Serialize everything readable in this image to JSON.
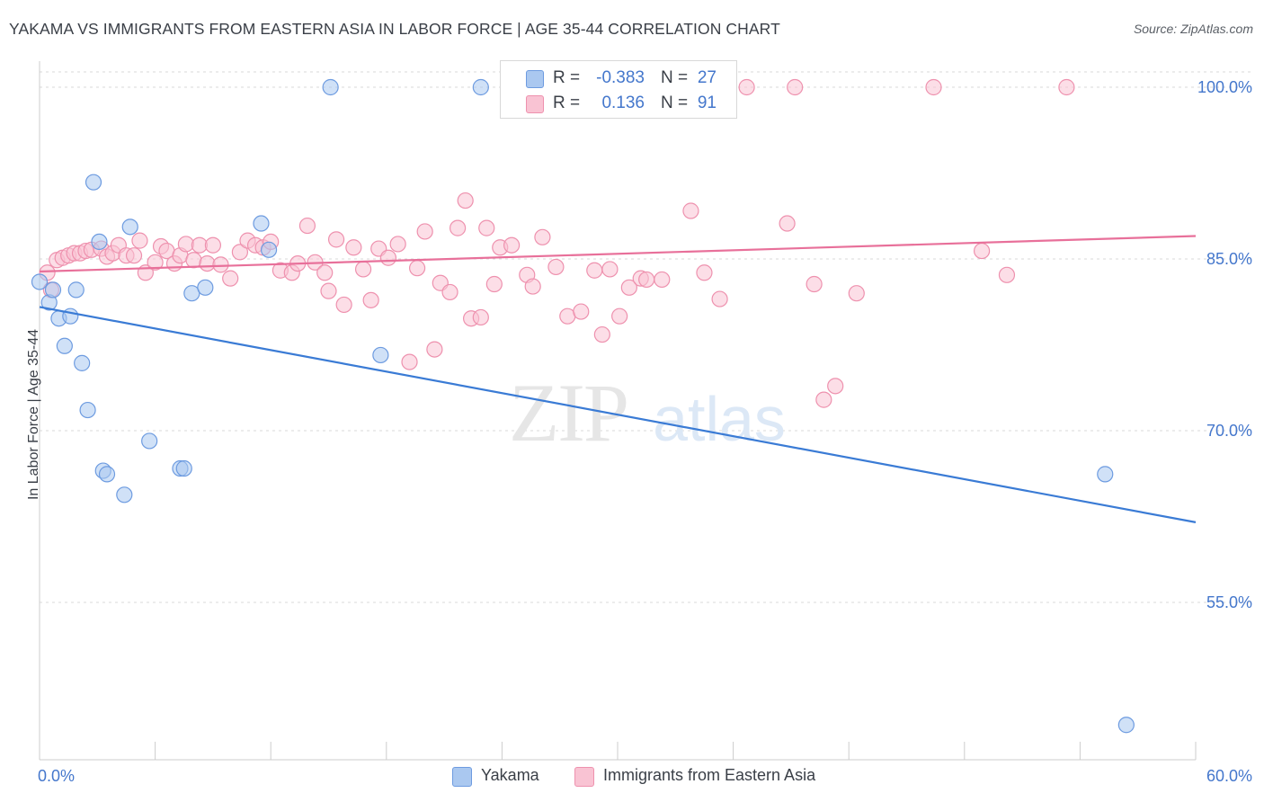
{
  "title": "YAKAMA VS IMMIGRANTS FROM EASTERN ASIA IN LABOR FORCE | AGE 35-44 CORRELATION CHART",
  "source": "Source: ZipAtlas.com",
  "legend_stats": [
    {
      "r_label": "R =",
      "r_value": "-0.383",
      "n_label": "N =",
      "n_value": "27",
      "color": "#aac8f0",
      "stroke": "#6d9be0"
    },
    {
      "r_label": "R =",
      "r_value": "0.136",
      "n_label": "N =",
      "n_value": "91",
      "color": "#f9c3d3",
      "stroke": "#ee91ae"
    }
  ],
  "colors": {
    "yakama_line": "#3a7bd5",
    "asia_line": "#e8709a",
    "tick_label": "#4477cc",
    "grid": "#d9d9d9"
  },
  "watermark": {
    "zip": "ZIP",
    "atlas": "atlas"
  },
  "chart_data": {
    "type": "scatter",
    "title": "YAKAMA VS IMMIGRANTS FROM EASTERN ASIA IN LABOR FORCE | AGE 35-44 CORRELATION CHART",
    "xlabel": "",
    "ylabel": "In Labor Force | Age 35-44",
    "xlim": [
      0,
      60
    ],
    "ylim": [
      40.5,
      101.5
    ],
    "x_tick_labels": [
      "0.0%",
      "60.0%"
    ],
    "y_ticks": [
      55,
      70,
      85,
      100
    ],
    "y_tick_labels": [
      "55.0%",
      "70.0%",
      "85.0%",
      "100.0%"
    ],
    "grid": true,
    "legend": "bottom-center",
    "series": [
      {
        "name": "Yakama",
        "color": "#aac8f0",
        "stroke": "#6d9be0",
        "points": [
          [
            0.0,
            83.0
          ],
          [
            0.5,
            81.2
          ],
          [
            0.7,
            82.3
          ],
          [
            1.0,
            79.8
          ],
          [
            1.3,
            77.4
          ],
          [
            1.6,
            80.0
          ],
          [
            1.9,
            82.3
          ],
          [
            2.2,
            75.9
          ],
          [
            2.5,
            71.8
          ],
          [
            2.8,
            91.7
          ],
          [
            3.1,
            86.5
          ],
          [
            3.3,
            66.5
          ],
          [
            3.5,
            66.2
          ],
          [
            4.4,
            64.4
          ],
          [
            4.7,
            87.8
          ],
          [
            5.7,
            69.1
          ],
          [
            7.3,
            66.7
          ],
          [
            7.5,
            66.7
          ],
          [
            7.9,
            82.0
          ],
          [
            8.6,
            82.5
          ],
          [
            11.5,
            88.1
          ],
          [
            11.9,
            85.8
          ],
          [
            15.1,
            100.0
          ],
          [
            17.7,
            76.6
          ],
          [
            22.9,
            100.0
          ],
          [
            55.3,
            66.2
          ],
          [
            56.4,
            44.3
          ]
        ]
      },
      {
        "name": "Immigrants from Eastern Asia",
        "color": "#f9c3d3",
        "stroke": "#ee91ae",
        "points": [
          [
            0.4,
            83.8
          ],
          [
            0.6,
            82.3
          ],
          [
            0.9,
            84.9
          ],
          [
            1.2,
            85.1
          ],
          [
            1.5,
            85.3
          ],
          [
            1.8,
            85.5
          ],
          [
            2.1,
            85.5
          ],
          [
            2.4,
            85.7
          ],
          [
            2.7,
            85.8
          ],
          [
            3.2,
            85.9
          ],
          [
            3.5,
            85.2
          ],
          [
            3.8,
            85.5
          ],
          [
            4.1,
            86.2
          ],
          [
            4.5,
            85.3
          ],
          [
            4.9,
            85.3
          ],
          [
            5.2,
            86.6
          ],
          [
            5.5,
            83.8
          ],
          [
            6.0,
            84.7
          ],
          [
            6.3,
            86.1
          ],
          [
            6.6,
            85.7
          ],
          [
            7.0,
            84.6
          ],
          [
            7.3,
            85.3
          ],
          [
            7.6,
            86.3
          ],
          [
            8.0,
            84.9
          ],
          [
            8.3,
            86.2
          ],
          [
            8.7,
            84.6
          ],
          [
            9.0,
            86.2
          ],
          [
            9.4,
            84.5
          ],
          [
            9.9,
            83.3
          ],
          [
            10.4,
            85.6
          ],
          [
            10.8,
            86.6
          ],
          [
            11.2,
            86.2
          ],
          [
            11.6,
            86.0
          ],
          [
            12.0,
            86.5
          ],
          [
            12.5,
            84.0
          ],
          [
            13.1,
            83.8
          ],
          [
            13.4,
            84.6
          ],
          [
            13.9,
            87.9
          ],
          [
            14.3,
            84.7
          ],
          [
            14.8,
            83.8
          ],
          [
            15.0,
            82.2
          ],
          [
            15.4,
            86.7
          ],
          [
            15.8,
            81.0
          ],
          [
            16.3,
            86.0
          ],
          [
            16.8,
            84.1
          ],
          [
            17.2,
            81.4
          ],
          [
            17.6,
            85.9
          ],
          [
            18.1,
            85.1
          ],
          [
            18.6,
            86.3
          ],
          [
            19.2,
            76.0
          ],
          [
            19.6,
            84.2
          ],
          [
            20.0,
            87.4
          ],
          [
            20.5,
            77.1
          ],
          [
            20.8,
            82.9
          ],
          [
            21.3,
            82.1
          ],
          [
            21.7,
            87.7
          ],
          [
            22.1,
            90.1
          ],
          [
            22.4,
            79.8
          ],
          [
            22.9,
            79.9
          ],
          [
            23.2,
            87.7
          ],
          [
            23.6,
            82.8
          ],
          [
            23.9,
            86.0
          ],
          [
            24.5,
            86.2
          ],
          [
            25.3,
            83.6
          ],
          [
            25.6,
            82.6
          ],
          [
            26.1,
            86.9
          ],
          [
            26.8,
            84.3
          ],
          [
            27.4,
            80.0
          ],
          [
            28.1,
            80.4
          ],
          [
            28.8,
            84.0
          ],
          [
            29.2,
            78.4
          ],
          [
            29.6,
            84.1
          ],
          [
            30.1,
            80.0
          ],
          [
            30.6,
            82.5
          ],
          [
            31.2,
            83.3
          ],
          [
            31.5,
            83.2
          ],
          [
            32.3,
            83.2
          ],
          [
            33.8,
            89.2
          ],
          [
            34.5,
            83.8
          ],
          [
            35.3,
            81.5
          ],
          [
            36.7,
            100.0
          ],
          [
            39.2,
            100.0
          ],
          [
            38.8,
            88.1
          ],
          [
            40.2,
            82.8
          ],
          [
            40.7,
            72.7
          ],
          [
            41.3,
            73.9
          ],
          [
            42.4,
            82.0
          ],
          [
            46.4,
            100.0
          ],
          [
            48.9,
            85.7
          ],
          [
            50.2,
            83.6
          ],
          [
            53.3,
            100.0
          ]
        ]
      }
    ],
    "trend_lines": [
      {
        "name": "Yakama",
        "x": [
          0,
          60
        ],
        "y": [
          80.8,
          62.0
        ]
      },
      {
        "name": "Immigrants from Eastern Asia",
        "x": [
          0,
          60
        ],
        "y": [
          83.9,
          87.0
        ]
      }
    ]
  }
}
